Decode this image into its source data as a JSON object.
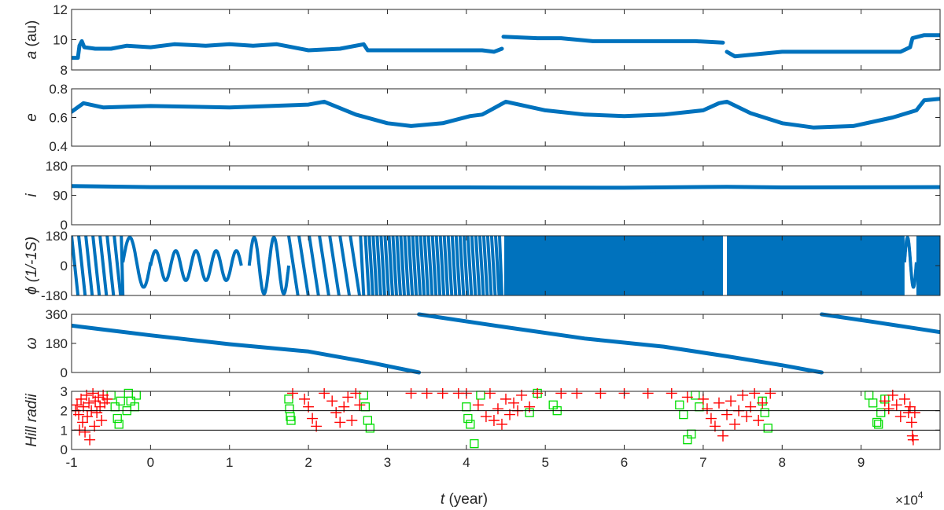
{
  "chart_data": {
    "type": "scatter",
    "colors": {
      "main": "#0072BD",
      "red": "#FF0000",
      "green": "#00DD00",
      "ref_line": "#000000"
    },
    "x_axis": {
      "label_var": "t",
      "label_unit": " (year)",
      "lim": [
        -1,
        10
      ],
      "ticks": [
        -1,
        0,
        1,
        2,
        3,
        4,
        5,
        6,
        7,
        8,
        9
      ],
      "tick_labels": [
        "-1",
        "0",
        "1",
        "2",
        "3",
        "4",
        "5",
        "6",
        "7",
        "8",
        "9"
      ],
      "exponent_label": "×10",
      "exponent_power": "4"
    },
    "panels": [
      {
        "id": "a",
        "ylabel_var": "a",
        "ylabel_unit": " (au)",
        "ylim": [
          8,
          12
        ],
        "yticks": [
          8,
          10,
          12
        ],
        "ytick_labels": [
          "8",
          "10",
          "12"
        ],
        "kind": "line",
        "segments": [
          [
            [
              -1.0,
              8.8
            ],
            [
              -0.92,
              8.8
            ],
            [
              -0.9,
              9.6
            ],
            [
              -0.87,
              9.9
            ],
            [
              -0.84,
              9.5
            ],
            [
              -0.7,
              9.4
            ],
            [
              -0.5,
              9.4
            ],
            [
              -0.3,
              9.6
            ],
            [
              0.0,
              9.5
            ],
            [
              0.3,
              9.7
            ],
            [
              0.7,
              9.6
            ],
            [
              1.0,
              9.7
            ],
            [
              1.3,
              9.6
            ],
            [
              1.6,
              9.7
            ],
            [
              2.0,
              9.3
            ],
            [
              2.4,
              9.4
            ],
            [
              2.7,
              9.7
            ],
            [
              2.75,
              9.3
            ],
            [
              3.1,
              9.3
            ],
            [
              3.6,
              9.3
            ],
            [
              4.2,
              9.3
            ],
            [
              4.35,
              9.2
            ],
            [
              4.45,
              9.4
            ]
          ],
          [
            [
              4.47,
              10.2
            ],
            [
              4.9,
              10.1
            ],
            [
              5.2,
              10.1
            ],
            [
              5.6,
              9.9
            ],
            [
              6.0,
              9.9
            ],
            [
              6.5,
              9.9
            ],
            [
              6.9,
              9.9
            ],
            [
              7.25,
              9.8
            ]
          ],
          [
            [
              7.3,
              9.2
            ],
            [
              7.4,
              8.9
            ],
            [
              7.6,
              9.0
            ],
            [
              8.0,
              9.2
            ],
            [
              8.6,
              9.2
            ],
            [
              9.1,
              9.2
            ],
            [
              9.5,
              9.2
            ],
            [
              9.62,
              9.5
            ],
            [
              9.65,
              10.1
            ],
            [
              9.8,
              10.3
            ],
            [
              10.0,
              10.3
            ]
          ]
        ]
      },
      {
        "id": "e",
        "ylabel_var": "e",
        "ylabel_unit": "",
        "ylim": [
          0.4,
          0.8
        ],
        "yticks": [
          0.4,
          0.6,
          0.8
        ],
        "ytick_labels": [
          "0.4",
          "0.6",
          "0.8"
        ],
        "kind": "line",
        "segments": [
          [
            [
              -1.0,
              0.64
            ],
            [
              -0.85,
              0.7
            ],
            [
              -0.6,
              0.67
            ],
            [
              0.0,
              0.68
            ],
            [
              1.0,
              0.67
            ],
            [
              2.0,
              0.69
            ],
            [
              2.2,
              0.71
            ],
            [
              2.6,
              0.62
            ],
            [
              3.0,
              0.56
            ],
            [
              3.3,
              0.54
            ],
            [
              3.7,
              0.56
            ],
            [
              4.05,
              0.61
            ],
            [
              4.2,
              0.62
            ],
            [
              4.3,
              0.65
            ],
            [
              4.5,
              0.71
            ],
            [
              5.0,
              0.65
            ],
            [
              5.5,
              0.62
            ],
            [
              6.0,
              0.61
            ],
            [
              6.5,
              0.62
            ],
            [
              7.0,
              0.65
            ],
            [
              7.2,
              0.7
            ],
            [
              7.3,
              0.71
            ],
            [
              7.6,
              0.63
            ],
            [
              8.0,
              0.56
            ],
            [
              8.4,
              0.53
            ],
            [
              8.9,
              0.54
            ],
            [
              9.4,
              0.6
            ],
            [
              9.7,
              0.65
            ],
            [
              9.8,
              0.72
            ],
            [
              10.0,
              0.73
            ]
          ]
        ]
      },
      {
        "id": "i",
        "ylabel_var": "i",
        "ylabel_unit": "",
        "ylim": [
          0,
          180
        ],
        "yticks": [
          0,
          90,
          180
        ],
        "ytick_labels": [
          "0",
          "90",
          "180"
        ],
        "kind": "line",
        "segments": [
          [
            [
              -1.0,
              118
            ],
            [
              0.0,
              115
            ],
            [
              2.0,
              114
            ],
            [
              4.0,
              114
            ],
            [
              6.0,
              113
            ],
            [
              7.3,
              116
            ],
            [
              8.0,
              114
            ],
            [
              10.0,
              115
            ]
          ]
        ]
      },
      {
        "id": "phi",
        "ylabel_var": "ϕ",
        "ylabel_unit": " (1/-1S)",
        "ylim": [
          -180,
          180
        ],
        "yticks": [
          -180,
          0,
          180
        ],
        "ytick_labels": [
          "-180",
          "0",
          "180"
        ],
        "kind": "phase",
        "dense_regions": [
          [
            4.48,
            7.25
          ],
          [
            7.3,
            9.55
          ],
          [
            9.7,
            10.0
          ]
        ],
        "librations": [
          {
            "x0": -0.35,
            "x1": 0.0,
            "cycles": 1.0,
            "mid": 20,
            "amp": 150
          },
          {
            "x0": 0.0,
            "x1": 1.15,
            "cycles": 4.5,
            "mid": 0,
            "amp": 90
          },
          {
            "x0": 1.25,
            "x1": 1.75,
            "cycles": 2.0,
            "mid": 0,
            "amp": 170
          },
          {
            "x0": 9.55,
            "x1": 9.7,
            "cycles": 1.0,
            "mid": 20,
            "amp": 150
          }
        ],
        "circulation_bands": [
          {
            "x0": -1.0,
            "x1": -0.35,
            "period": 0.09
          },
          {
            "x0": 1.75,
            "x1": 2.7,
            "period": 0.13
          },
          {
            "x0": 2.72,
            "x1": 4.45,
            "period": 0.05
          },
          {
            "x0": 5.8,
            "x1": 7.2,
            "period": 0.07
          }
        ]
      },
      {
        "id": "omega",
        "ylabel_var": "ω",
        "ylabel_unit": "",
        "ylim": [
          0,
          360
        ],
        "yticks": [
          0,
          180,
          360
        ],
        "ytick_labels": [
          "0",
          "180",
          "360"
        ],
        "kind": "line",
        "segments": [
          [
            [
              -1.0,
              290
            ],
            [
              0.0,
              230
            ],
            [
              1.0,
              175
            ],
            [
              2.0,
              130
            ],
            [
              2.8,
              60
            ],
            [
              3.4,
              0
            ]
          ],
          [
            [
              3.4,
              360
            ],
            [
              4.5,
              280
            ],
            [
              5.5,
              210
            ],
            [
              6.5,
              160
            ],
            [
              7.3,
              100
            ],
            [
              8.0,
              45
            ],
            [
              8.5,
              0
            ]
          ],
          [
            [
              8.5,
              360
            ],
            [
              9.2,
              310
            ],
            [
              10.0,
              250
            ]
          ]
        ]
      },
      {
        "id": "hill",
        "ylabel_var": "Hill radii",
        "ylabel_unit": "",
        "ylim": [
          0,
          3
        ],
        "yticks": [
          0,
          1,
          2,
          3
        ],
        "ytick_labels": [
          "0",
          "1",
          "2",
          "3"
        ],
        "kind": "encounters",
        "ref_lines": [
          1,
          2,
          3
        ],
        "red_plus": [
          [
            -0.95,
            2.0
          ],
          [
            -0.93,
            2.3
          ],
          [
            -0.91,
            1.8
          ],
          [
            -0.9,
            1.0
          ],
          [
            -0.88,
            2.6
          ],
          [
            -0.86,
            1.4
          ],
          [
            -0.85,
            2.2
          ],
          [
            -0.83,
            0.9
          ],
          [
            -0.81,
            2.8
          ],
          [
            -0.8,
            1.7
          ],
          [
            -0.78,
            2.4
          ],
          [
            -0.77,
            0.5
          ],
          [
            -0.75,
            2.0
          ],
          [
            -0.73,
            2.9
          ],
          [
            -0.71,
            1.2
          ],
          [
            -0.7,
            2.5
          ],
          [
            -0.68,
            1.9
          ],
          [
            -0.66,
            2.7
          ],
          [
            -0.64,
            2.2
          ],
          [
            -0.62,
            1.5
          ],
          [
            -0.6,
            2.8
          ],
          [
            -0.58,
            2.4
          ],
          [
            -0.55,
            2.6
          ],
          [
            1.8,
            2.9
          ],
          [
            1.95,
            2.6
          ],
          [
            2.0,
            2.2
          ],
          [
            2.05,
            1.6
          ],
          [
            2.1,
            1.2
          ],
          [
            2.2,
            2.9
          ],
          [
            2.3,
            2.5
          ],
          [
            2.35,
            1.9
          ],
          [
            2.4,
            1.4
          ],
          [
            2.45,
            2.2
          ],
          [
            2.5,
            2.7
          ],
          [
            2.55,
            1.5
          ],
          [
            2.6,
            2.9
          ],
          [
            2.65,
            2.3
          ],
          [
            3.3,
            2.9
          ],
          [
            3.5,
            2.9
          ],
          [
            3.7,
            2.9
          ],
          [
            3.9,
            2.9
          ],
          [
            4.0,
            2.9
          ],
          [
            4.15,
            2.3
          ],
          [
            4.25,
            1.7
          ],
          [
            4.3,
            2.9
          ],
          [
            4.35,
            1.5
          ],
          [
            4.4,
            2.1
          ],
          [
            4.45,
            1.3
          ],
          [
            4.5,
            2.6
          ],
          [
            4.55,
            1.8
          ],
          [
            4.6,
            2.4
          ],
          [
            4.65,
            2.0
          ],
          [
            4.7,
            2.8
          ],
          [
            4.8,
            2.2
          ],
          [
            4.9,
            2.9
          ],
          [
            5.2,
            2.9
          ],
          [
            5.4,
            2.9
          ],
          [
            5.7,
            2.9
          ],
          [
            6.0,
            2.9
          ],
          [
            6.3,
            2.9
          ],
          [
            6.6,
            2.9
          ],
          [
            6.8,
            2.7
          ],
          [
            7.0,
            2.6
          ],
          [
            7.05,
            2.1
          ],
          [
            7.1,
            1.6
          ],
          [
            7.15,
            1.2
          ],
          [
            7.2,
            2.4
          ],
          [
            7.25,
            0.7
          ],
          [
            7.3,
            1.8
          ],
          [
            7.35,
            2.5
          ],
          [
            7.4,
            1.3
          ],
          [
            7.45,
            2.0
          ],
          [
            7.5,
            2.8
          ],
          [
            7.55,
            1.7
          ],
          [
            7.6,
            2.2
          ],
          [
            7.65,
            2.9
          ],
          [
            7.7,
            1.5
          ],
          [
            7.75,
            2.4
          ],
          [
            7.85,
            2.9
          ],
          [
            9.3,
            2.5
          ],
          [
            9.35,
            2.1
          ],
          [
            9.4,
            2.8
          ],
          [
            9.45,
            2.3
          ],
          [
            9.5,
            1.7
          ],
          [
            9.55,
            2.6
          ],
          [
            9.6,
            1.9
          ],
          [
            9.62,
            2.2
          ],
          [
            9.64,
            1.4
          ],
          [
            9.65,
            0.7
          ],
          [
            9.66,
            0.5
          ],
          [
            9.68,
            1.9
          ]
        ],
        "green_squares": [
          [
            -0.5,
            2.8
          ],
          [
            -0.45,
            2.2
          ],
          [
            -0.42,
            1.6
          ],
          [
            -0.4,
            1.3
          ],
          [
            -0.38,
            2.5
          ],
          [
            -0.3,
            2.0
          ],
          [
            -0.28,
            2.9
          ],
          [
            -0.25,
            2.5
          ],
          [
            -0.2,
            2.2
          ],
          [
            -0.18,
            2.8
          ],
          [
            1.75,
            2.6
          ],
          [
            1.76,
            2.1
          ],
          [
            1.77,
            1.7
          ],
          [
            1.78,
            1.5
          ],
          [
            2.7,
            2.8
          ],
          [
            2.72,
            2.2
          ],
          [
            2.75,
            1.5
          ],
          [
            2.78,
            1.1
          ],
          [
            4.0,
            2.2
          ],
          [
            4.02,
            1.6
          ],
          [
            4.05,
            1.3
          ],
          [
            4.1,
            0.3
          ],
          [
            4.18,
            2.8
          ],
          [
            4.8,
            1.9
          ],
          [
            4.9,
            2.9
          ],
          [
            5.1,
            2.3
          ],
          [
            5.15,
            2.0
          ],
          [
            6.7,
            2.3
          ],
          [
            6.75,
            1.8
          ],
          [
            6.8,
            0.5
          ],
          [
            6.85,
            0.8
          ],
          [
            6.9,
            2.8
          ],
          [
            6.95,
            2.2
          ],
          [
            7.75,
            2.5
          ],
          [
            7.78,
            1.9
          ],
          [
            7.82,
            1.1
          ],
          [
            9.1,
            2.8
          ],
          [
            9.15,
            2.4
          ],
          [
            9.2,
            1.4
          ],
          [
            9.22,
            1.3
          ],
          [
            9.25,
            1.9
          ],
          [
            9.3,
            2.6
          ]
        ]
      }
    ]
  }
}
